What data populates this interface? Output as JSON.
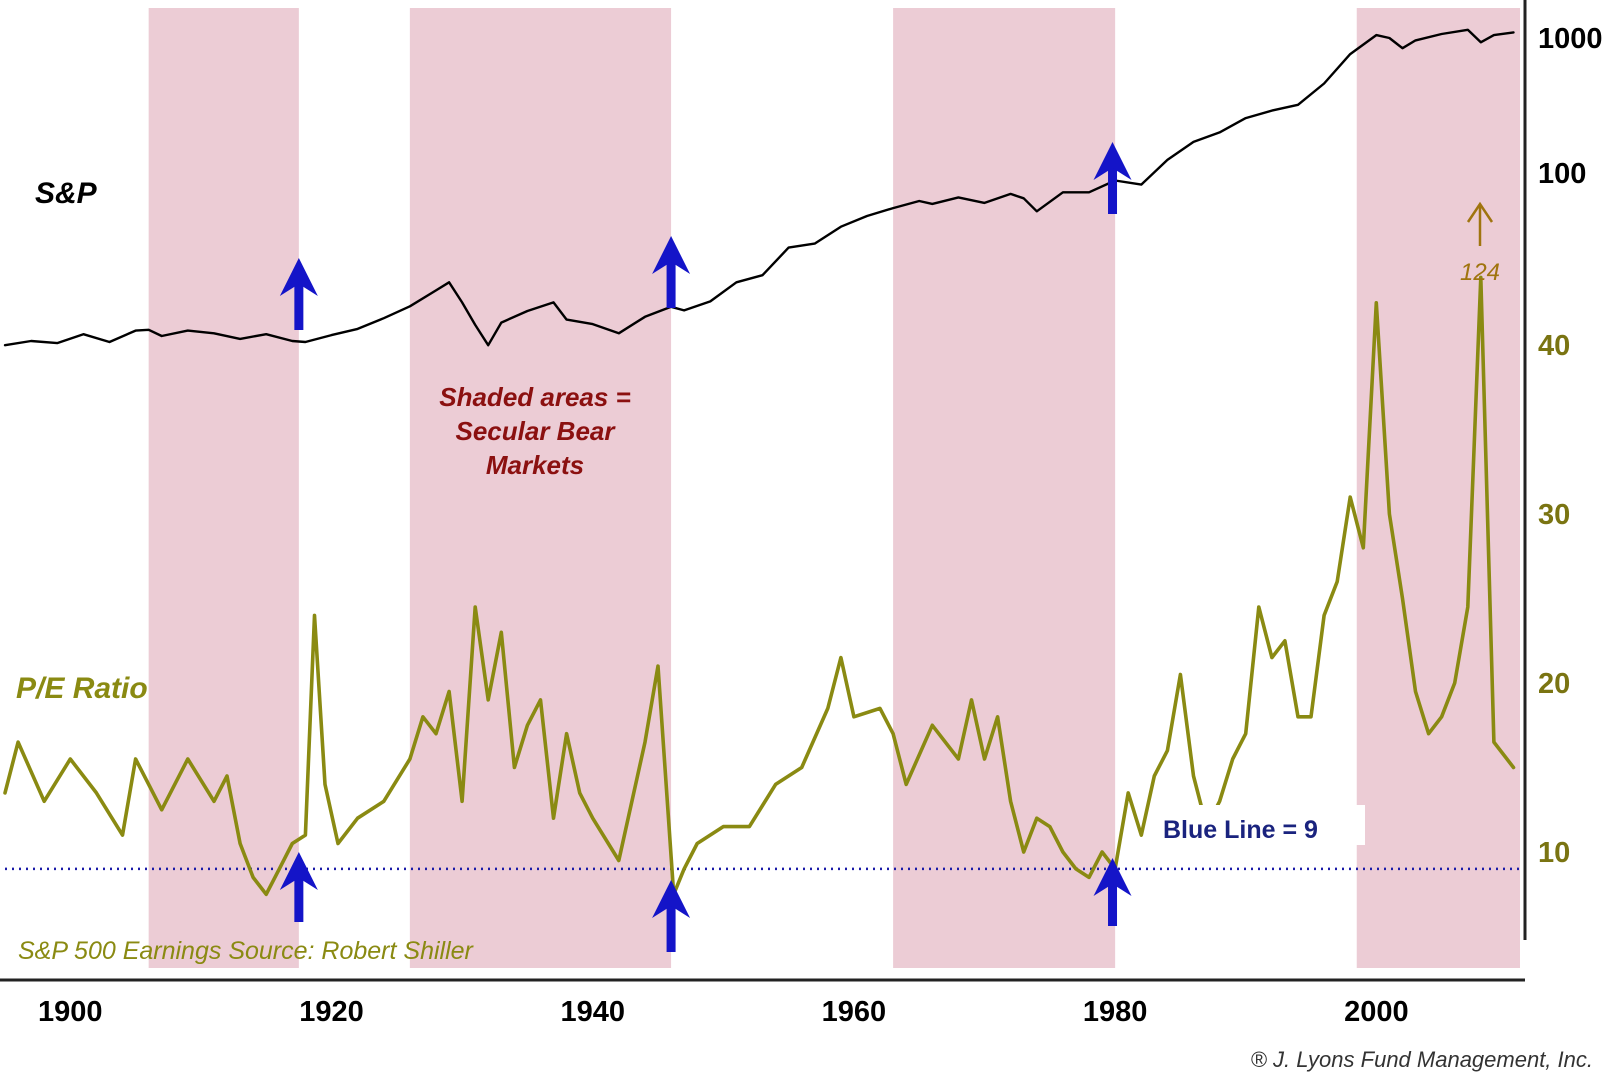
{
  "chart_data": {
    "type": "line",
    "x_ticks": [
      1900,
      1920,
      1940,
      1960,
      1980,
      2000
    ],
    "xlim": [
      1895,
      2011
    ],
    "top_panel": {
      "series_label": "S&P",
      "scale": "log",
      "y_ticks": [
        100,
        1000
      ],
      "series": {
        "color": "#000000",
        "x": [
          1895,
          1897,
          1899,
          1901,
          1903,
          1905,
          1906,
          1907,
          1909,
          1911,
          1913,
          1915,
          1917,
          1918,
          1920,
          1922,
          1924,
          1926,
          1928,
          1929,
          1930,
          1931,
          1932,
          1933,
          1935,
          1937,
          1938,
          1940,
          1942,
          1944,
          1946,
          1947,
          1949,
          1951,
          1953,
          1955,
          1957,
          1959,
          1961,
          1963,
          1965,
          1966,
          1968,
          1970,
          1972,
          1973,
          1974,
          1976,
          1978,
          1980,
          1982,
          1984,
          1986,
          1988,
          1990,
          1992,
          1994,
          1996,
          1998,
          2000,
          2001,
          2002,
          2003,
          2005,
          2007,
          2008,
          2009,
          2010.5
        ],
        "values": [
          5.3,
          5.7,
          5.5,
          6.4,
          5.6,
          6.8,
          6.9,
          6.2,
          6.8,
          6.5,
          5.9,
          6.4,
          5.7,
          5.6,
          6.3,
          7.0,
          8.4,
          10.3,
          13.5,
          15.5,
          11.0,
          7.5,
          5.3,
          7.8,
          9.5,
          11.0,
          8.2,
          7.6,
          6.5,
          8.6,
          10.2,
          9.6,
          11.2,
          15.5,
          17.5,
          28,
          30,
          40,
          48,
          55,
          62,
          59,
          66,
          60,
          70,
          65,
          52,
          72,
          72,
          88,
          82,
          125,
          170,
          200,
          255,
          290,
          320,
          460,
          760,
          1050,
          1000,
          840,
          960,
          1070,
          1150,
          930,
          1050,
          1100
        ]
      }
    },
    "bottom_panel": {
      "series_label": "P/E Ratio",
      "y_ticks": [
        10,
        20,
        30,
        40
      ],
      "ylim": [
        5,
        45
      ],
      "series": {
        "color": "#8a8a12",
        "x": [
          1895,
          1896,
          1898,
          1900,
          1902,
          1904,
          1905,
          1906,
          1907,
          1909,
          1911,
          1912,
          1913,
          1914,
          1915,
          1916,
          1917,
          1918,
          1918.7,
          1919.5,
          1920.5,
          1922,
          1924,
          1926,
          1927,
          1928,
          1929,
          1930,
          1931,
          1932,
          1933,
          1934,
          1935,
          1936,
          1937,
          1938,
          1939,
          1940,
          1942,
          1943,
          1944,
          1945,
          1946.2,
          1947,
          1948,
          1950,
          1952,
          1954,
          1956,
          1958,
          1959,
          1960,
          1962,
          1963,
          1964,
          1966,
          1968,
          1969,
          1970,
          1971,
          1972,
          1973,
          1974,
          1975,
          1976,
          1977,
          1978,
          1979,
          1980,
          1981,
          1982,
          1983,
          1984,
          1985,
          1986,
          1987,
          1988,
          1989,
          1990,
          1991,
          1992,
          1993,
          1994,
          1995,
          1996,
          1997,
          1998,
          1999,
          2000,
          2001,
          2002,
          2003,
          2004,
          2005,
          2006,
          2007,
          2008,
          2009,
          2010.5
        ],
        "values": [
          13.5,
          16.5,
          13.0,
          15.5,
          13.5,
          11.0,
          15.5,
          14.0,
          12.5,
          15.5,
          13.0,
          14.5,
          10.5,
          8.5,
          7.5,
          9.0,
          10.5,
          11.0,
          24.0,
          14.0,
          10.5,
          12.0,
          13.0,
          15.5,
          18.0,
          17.0,
          19.5,
          13.0,
          24.5,
          19.0,
          23.0,
          15.0,
          17.5,
          19.0,
          12.0,
          17.0,
          13.5,
          12.0,
          9.5,
          13.0,
          16.5,
          21.0,
          7.5,
          9.0,
          10.5,
          11.5,
          11.5,
          14.0,
          15.0,
          18.5,
          21.5,
          18.0,
          18.5,
          17.0,
          14.0,
          17.5,
          15.5,
          19.0,
          15.5,
          18.0,
          13.0,
          10.0,
          12.0,
          11.5,
          10.0,
          9.0,
          8.5,
          10.0,
          9.0,
          13.5,
          11.0,
          14.5,
          16.0,
          20.5,
          14.5,
          11.5,
          13.0,
          15.5,
          17.0,
          24.5,
          21.5,
          22.5,
          18.0,
          18.0,
          24.0,
          26.0,
          31.0,
          28.0,
          42.5,
          30.0,
          25.0,
          19.5,
          17.0,
          18.0,
          20.0,
          24.5,
          44.0,
          16.5,
          15.0
        ]
      },
      "annotation_124": "124",
      "blue_line": {
        "value": 9,
        "label": "Blue Line = 9",
        "color": "#1a1aa8"
      }
    },
    "shaded_periods": [
      [
        1906,
        1917.5
      ],
      [
        1926,
        1946
      ],
      [
        1963,
        1980
      ],
      [
        1998.5,
        2011
      ]
    ],
    "shaded_color": "#ecccd5",
    "shaded_note": [
      "Shaded areas =",
      "Secular Bear",
      "Markets"
    ],
    "arrow_years_top": [
      1917.5,
      1946,
      1979.8
    ],
    "arrow_years_bottom": [
      1917.5,
      1946,
      1979.8
    ],
    "arrow_color": "#1414c8",
    "source_label": "S&P 500 Earnings Source: Robert Shiller",
    "copyright": "® J. Lyons Fund Management, Inc."
  }
}
